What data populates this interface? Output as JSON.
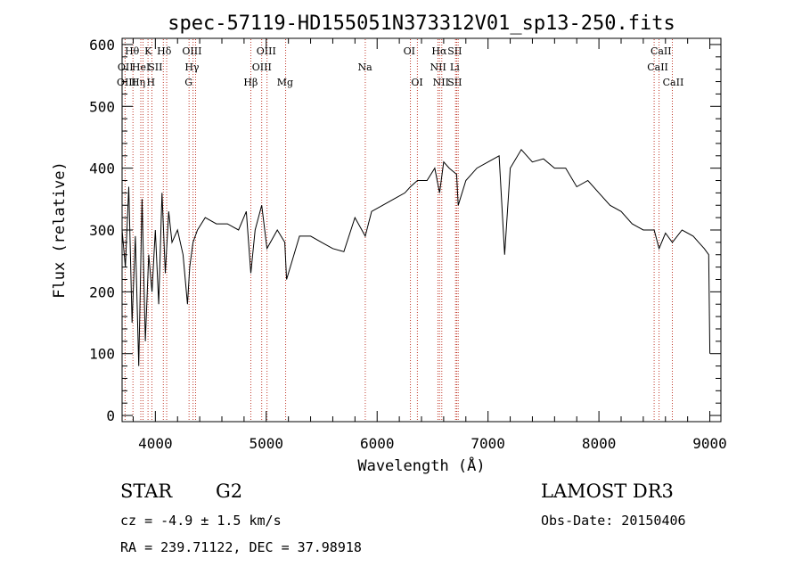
{
  "chart_data": {
    "type": "line",
    "title": "spec-57119-HD155051N373312V01_sp13-250.fits",
    "xlabel": "Wavelength (Å)",
    "ylabel": "Flux (relative)",
    "xlim": [
      3700,
      9100
    ],
    "ylim": [
      -10,
      610
    ],
    "x_ticks": [
      4000,
      5000,
      6000,
      7000,
      8000,
      9000
    ],
    "y_ticks": [
      0,
      100,
      200,
      300,
      400,
      500,
      600
    ],
    "line_color": "#000000",
    "marker_color": "#c0392b",
    "spectrum": {
      "x": [
        3700,
        3730,
        3760,
        3790,
        3820,
        3850,
        3880,
        3910,
        3940,
        3970,
        4000,
        4030,
        4060,
        4090,
        4120,
        4150,
        4200,
        4250,
        4290,
        4310,
        4340,
        4380,
        4450,
        4550,
        4650,
        4750,
        4820,
        4861,
        4900,
        4959,
        5007,
        5100,
        5167,
        5183,
        5300,
        5400,
        5500,
        5600,
        5700,
        5800,
        5893,
        5950,
        6050,
        6150,
        6250,
        6300,
        6363,
        6450,
        6520,
        6563,
        6600,
        6650,
        6717,
        6731,
        6800,
        6900,
        7000,
        7100,
        7150,
        7200,
        7300,
        7400,
        7500,
        7600,
        7700,
        7800,
        7900,
        8000,
        8100,
        8200,
        8300,
        8400,
        8498,
        8542,
        8600,
        8662,
        8750,
        8850,
        8900,
        8950,
        8990,
        9000
      ],
      "y": [
        300,
        240,
        370,
        150,
        290,
        80,
        350,
        120,
        260,
        200,
        300,
        180,
        360,
        230,
        330,
        280,
        300,
        260,
        180,
        240,
        280,
        300,
        320,
        310,
        310,
        300,
        330,
        230,
        300,
        340,
        270,
        300,
        280,
        220,
        290,
        290,
        280,
        270,
        265,
        320,
        290,
        330,
        340,
        350,
        360,
        370,
        380,
        380,
        400,
        360,
        410,
        400,
        390,
        340,
        380,
        400,
        410,
        420,
        260,
        400,
        430,
        410,
        415,
        400,
        400,
        370,
        380,
        360,
        340,
        330,
        310,
        300,
        300,
        270,
        295,
        280,
        300,
        290,
        280,
        270,
        260,
        100
      ]
    },
    "emission_lines": [
      {
        "name": "OII",
        "x": 3727
      },
      {
        "name": "Hθ",
        "x": 3798
      },
      {
        "name": "OIII",
        "x": 3869
      },
      {
        "name": "HeI",
        "x": 3889
      },
      {
        "name": "K",
        "x": 3934
      },
      {
        "name": "H",
        "x": 3969
      },
      {
        "name": "SII",
        "x": 4072
      },
      {
        "name": "Hδ",
        "x": 4102
      },
      {
        "name": "G",
        "x": 4304
      },
      {
        "name": "Hγ",
        "x": 4340
      },
      {
        "name": "OIII",
        "x": 4363
      },
      {
        "name": "Hβ",
        "x": 4861
      },
      {
        "name": "OIII",
        "x": 4959
      },
      {
        "name": "OIII",
        "x": 5007
      },
      {
        "name": "Mg",
        "x": 5175
      },
      {
        "name": "Na",
        "x": 5893
      },
      {
        "name": "OI",
        "x": 6300
      },
      {
        "name": "OI",
        "x": 6363
      },
      {
        "name": "NII",
        "x": 6548
      },
      {
        "name": "Hα",
        "x": 6563
      },
      {
        "name": "NII",
        "x": 6583
      },
      {
        "name": "Li",
        "x": 6707
      },
      {
        "name": "SII",
        "x": 6717
      },
      {
        "name": "SII",
        "x": 6731
      },
      {
        "name": "CaII",
        "x": 8498
      },
      {
        "name": "CaII",
        "x": 8542
      },
      {
        "name": "CaII",
        "x": 8662
      }
    ]
  },
  "line_labels": [
    {
      "text": "Hθ",
      "row": 0,
      "x": 3790
    },
    {
      "text": "K",
      "row": 0,
      "x": 3935
    },
    {
      "text": "Hδ",
      "row": 0,
      "x": 4080
    },
    {
      "text": "OIII",
      "row": 0,
      "x": 4330
    },
    {
      "text": "OIII",
      "row": 0,
      "x": 5000
    },
    {
      "text": "OI",
      "row": 0,
      "x": 6290
    },
    {
      "text": "Hα",
      "row": 0,
      "x": 6560
    },
    {
      "text": "SII",
      "row": 0,
      "x": 6700
    },
    {
      "text": "CaII",
      "row": 0,
      "x": 8560
    },
    {
      "text": "OII",
      "row": 1,
      "x": 3730
    },
    {
      "text": "HeI",
      "row": 1,
      "x": 3870
    },
    {
      "text": "SII",
      "row": 1,
      "x": 4000
    },
    {
      "text": "Hγ",
      "row": 1,
      "x": 4330
    },
    {
      "text": "OIII",
      "row": 1,
      "x": 4960
    },
    {
      "text": "Na",
      "row": 1,
      "x": 5890
    },
    {
      "text": "NII",
      "row": 1,
      "x": 6550
    },
    {
      "text": "Li",
      "row": 1,
      "x": 6700
    },
    {
      "text": "CaII",
      "row": 1,
      "x": 8530
    },
    {
      "text": "OIII",
      "row": 2,
      "x": 3740
    },
    {
      "text": "Hη",
      "row": 2,
      "x": 3845
    },
    {
      "text": "H",
      "row": 2,
      "x": 3960
    },
    {
      "text": "G",
      "row": 2,
      "x": 4300
    },
    {
      "text": "Hβ",
      "row": 2,
      "x": 4860
    },
    {
      "text": "Mg",
      "row": 2,
      "x": 5170
    },
    {
      "text": "OI",
      "row": 2,
      "x": 6360
    },
    {
      "text": "NII",
      "row": 2,
      "x": 6575
    },
    {
      "text": "SII",
      "row": 2,
      "x": 6700
    },
    {
      "text": "CaII",
      "row": 2,
      "x": 8670
    }
  ],
  "info": {
    "class_label": "STAR",
    "subclass_label": "G2",
    "survey_label": "LAMOST DR3",
    "cz_label": "cz = -4.9 ± 1.5 km/s",
    "obs_date_label": "Obs-Date: 20150406",
    "coords_label": "RA = 239.71122, DEC =  37.98918"
  }
}
